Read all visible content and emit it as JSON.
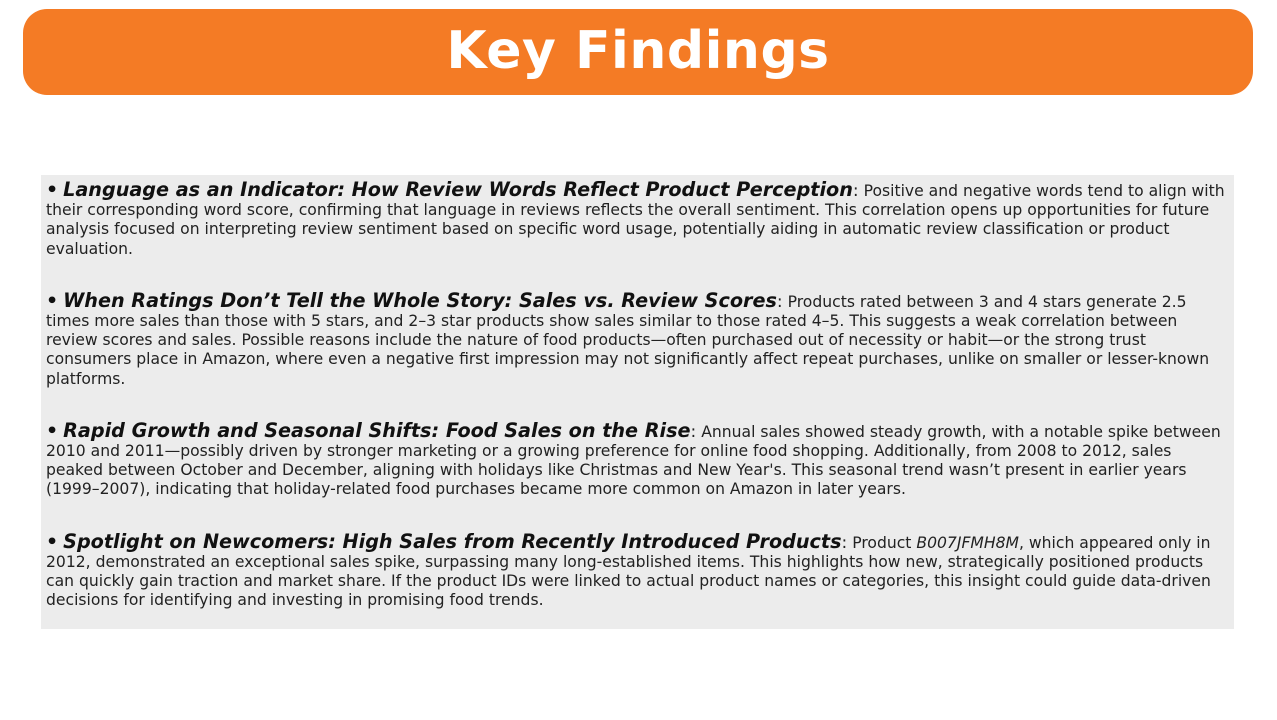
{
  "slide": {
    "title": "Key Findings",
    "accent_color": "#f47b25",
    "panel_color": "#ececec"
  },
  "findings": [
    {
      "bullet": "•",
      "heading": "Language as an Indicator: How Review Words Reflect Product Perception",
      "separator": ":",
      "body": "Positive and negative words tend to align with their corresponding word score, confirming that language in reviews reflects the overall sentiment. This correlation opens up opportunities for future analysis focused on interpreting review sentiment based on specific word usage, potentially aiding in automatic review classification or product evaluation."
    },
    {
      "bullet": "•",
      "heading": "When Ratings Don’t Tell the Whole Story: Sales vs. Review Scores",
      "separator": ":",
      "body": "Products rated between 3 and 4 stars generate 2.5 times more sales than those with 5 stars, and 2–3 star products show sales similar to those rated 4–5. This suggests a weak correlation between review scores and sales. Possible reasons include the nature of food products—often purchased out of necessity or habit—or the strong trust consumers place in Amazon, where even a negative first impression may not significantly affect repeat purchases, unlike on smaller or lesser-known platforms."
    },
    {
      "bullet": "•",
      "heading": "Rapid Growth and Seasonal Shifts: Food Sales on the Rise",
      "separator": ":",
      "body": "Annual sales showed steady growth, with a notable spike between 2010 and 2011—possibly driven by stronger marketing or a growing preference for online food shopping. Additionally, from 2008 to 2012, sales peaked between October and December, aligning with holidays like Christmas and New Year's. This seasonal trend wasn’t present in earlier years (1999–2007), indicating that holiday-related food purchases became more common on Amazon in later years."
    },
    {
      "bullet": "•",
      "heading": "Spotlight on Newcomers: High Sales from Recently Introduced Products",
      "separator": ":",
      "body_prefix": "Product",
      "product_id": "B007JFMH8M",
      "body": ", which appeared only in 2012, demonstrated an exceptional sales spike, surpassing many long-established items. This highlights how new, strategically positioned products can quickly gain traction and market share. If the product IDs were linked to actual product names or categories, this insight could guide data-driven decisions for identifying and investing in promising food trends."
    }
  ]
}
